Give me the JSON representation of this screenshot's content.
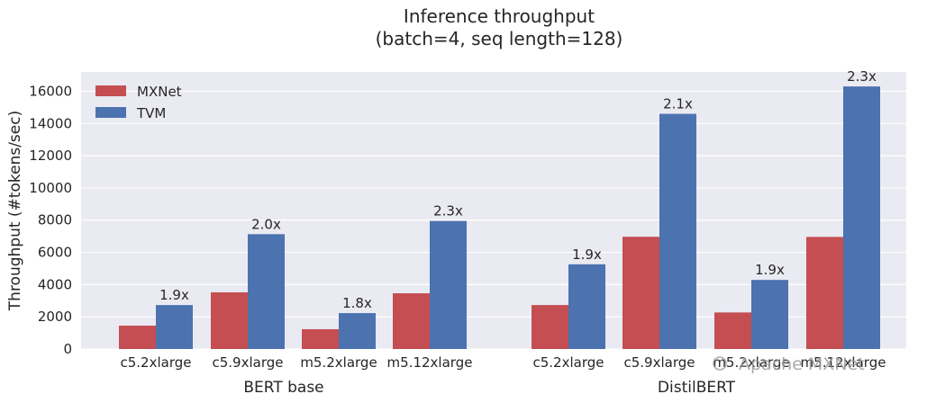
{
  "colors": {
    "mxnet": "#c44e52",
    "tvm": "#4c72b0",
    "plot_background": "#eaeaf2",
    "grid": "#ffffff"
  },
  "watermark": "Apache MXNet",
  "chart_data": {
    "type": "bar",
    "title": "Inference throughput",
    "subtitle": "(batch=4, seq length=128)",
    "xlabel": "",
    "ylabel": "Throughput (#tokens/sec)",
    "ylim": [
      0,
      17200
    ],
    "yticks": [
      0,
      2000,
      4000,
      6000,
      8000,
      10000,
      12000,
      14000,
      16000
    ],
    "grid": true,
    "legend_position": "top-left",
    "groups": [
      {
        "label": "BERT base",
        "categories": [
          "c5.2xlarge",
          "c5.9xlarge",
          "m5.2xlarge",
          "m5.12xlarge"
        ],
        "series": [
          {
            "name": "MXNet",
            "values": [
              1450,
              3520,
              1230,
              3460
            ]
          },
          {
            "name": "TVM",
            "values": [
              2730,
              7130,
              2230,
              7950
            ]
          }
        ],
        "speedups": [
          "1.9x",
          "2.0x",
          "1.8x",
          "2.3x"
        ]
      },
      {
        "label": "DistilBERT",
        "categories": [
          "c5.2xlarge",
          "c5.9xlarge",
          "m5.2xlarge",
          "m5.12xlarge"
        ],
        "series": [
          {
            "name": "MXNet",
            "values": [
              2730,
              6970,
              2270,
              6960
            ]
          },
          {
            "name": "TVM",
            "values": [
              5260,
              14600,
              4290,
              16300
            ]
          }
        ],
        "speedups": [
          "1.9x",
          "2.1x",
          "1.9x",
          "2.3x"
        ]
      }
    ]
  }
}
